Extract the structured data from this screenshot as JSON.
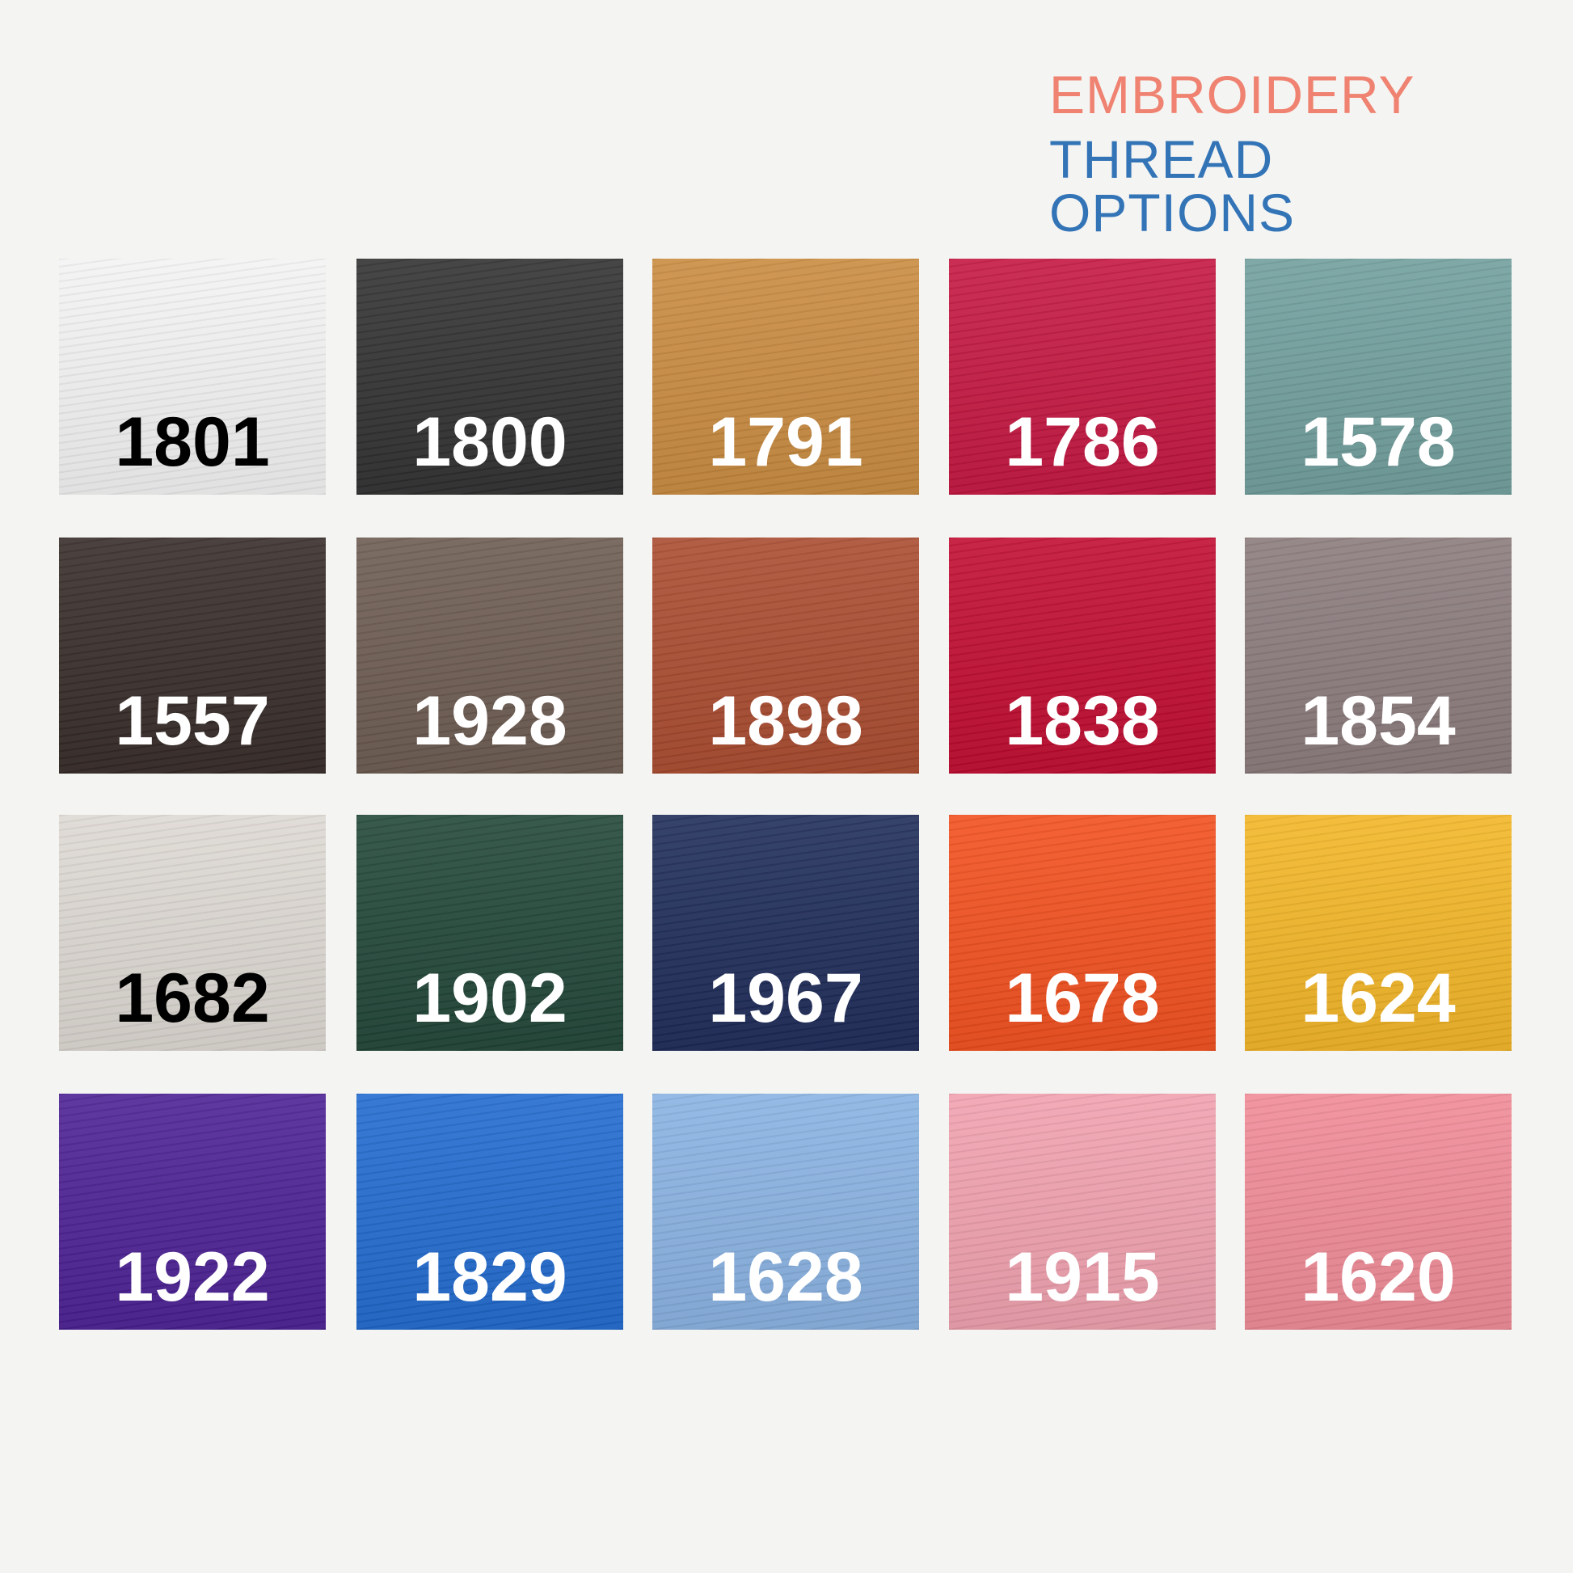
{
  "header": {
    "line1": "EMBROIDERY",
    "line2": "THREAD OPTIONS"
  },
  "swatches": [
    {
      "label": "1801",
      "color": "#f3f3f3",
      "label_color": "#000000"
    },
    {
      "label": "1800",
      "color": "#2f2f2f",
      "label_color": "#ffffff"
    },
    {
      "label": "1791",
      "color": "#c98a3e",
      "label_color": "#ffffff"
    },
    {
      "label": "1786",
      "color": "#c4143f",
      "label_color": "#ffffff"
    },
    {
      "label": "1578",
      "color": "#6f9e9c",
      "label_color": "#ffffff"
    },
    {
      "label": "1557",
      "color": "#352a27",
      "label_color": "#ffffff"
    },
    {
      "label": "1928",
      "color": "#6b5a50",
      "label_color": "#ffffff"
    },
    {
      "label": "1898",
      "color": "#a94a2e",
      "label_color": "#ffffff"
    },
    {
      "label": "1838",
      "color": "#c10a2f",
      "label_color": "#ffffff"
    },
    {
      "label": "1854",
      "color": "#8a7a7b",
      "label_color": "#ffffff"
    },
    {
      "label": "1682",
      "color": "#ddd8d2",
      "label_color": "#000000"
    },
    {
      "label": "1902",
      "color": "#1f4536",
      "label_color": "#ffffff"
    },
    {
      "label": "1967",
      "color": "#1c2a57",
      "label_color": "#ffffff"
    },
    {
      "label": "1678",
      "color": "#f24e1c",
      "label_color": "#ffffff"
    },
    {
      "label": "1624",
      "color": "#f3b524",
      "label_color": "#ffffff"
    },
    {
      "label": "1922",
      "color": "#4a1f93",
      "label_color": "#ffffff"
    },
    {
      "label": "1829",
      "color": "#1f69cf",
      "label_color": "#ffffff"
    },
    {
      "label": "1628",
      "color": "#88b2e2",
      "label_color": "#ffffff"
    },
    {
      "label": "1915",
      "color": "#f0a0ae",
      "label_color": "#ffffff"
    },
    {
      "label": "1620",
      "color": "#f08a96",
      "label_color": "#ffffff"
    }
  ]
}
